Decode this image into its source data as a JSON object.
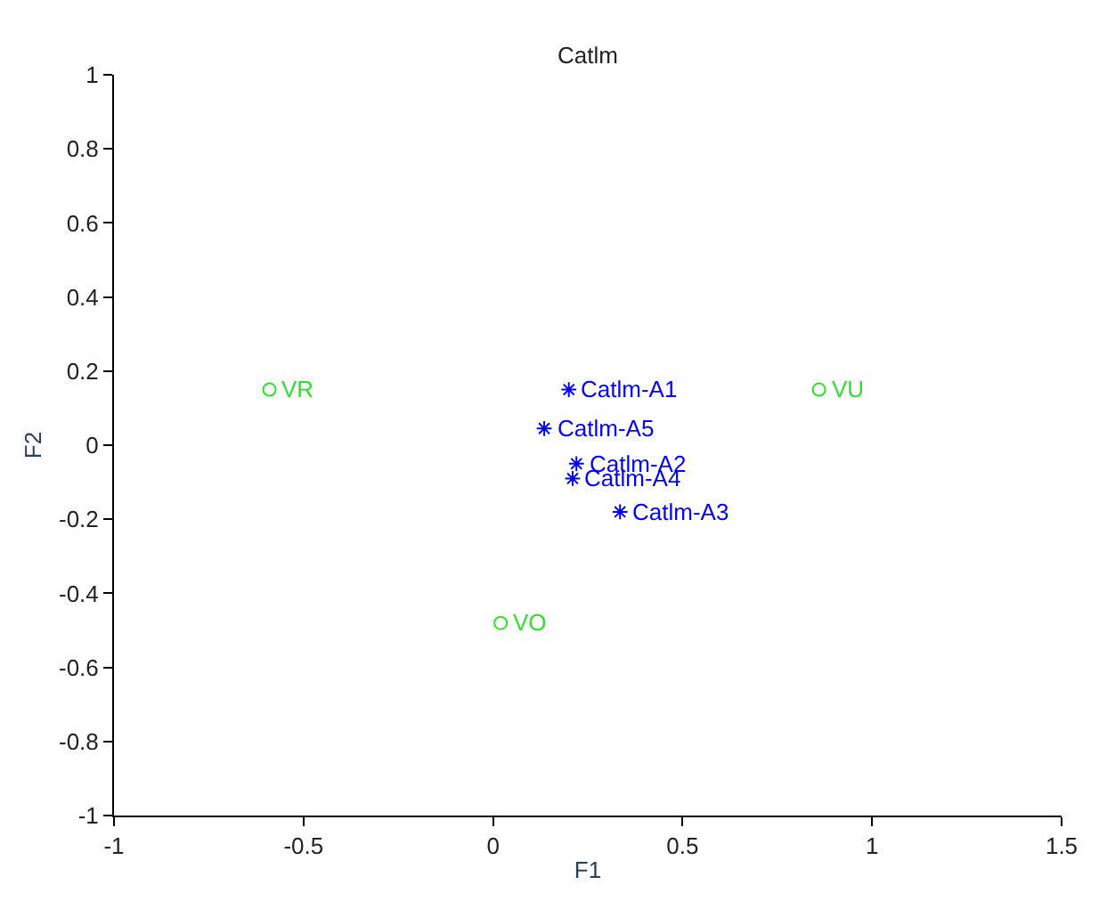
{
  "chart_data": {
    "type": "scatter",
    "title": "Catlm",
    "xlabel": "F1",
    "ylabel": "F2",
    "xlim": [
      -1,
      1.5
    ],
    "xticks": [
      -1,
      -0.5,
      0,
      0.5,
      1,
      1.5
    ],
    "ylim": [
      -1,
      1
    ],
    "yticks": [
      -1,
      -0.8,
      -0.6,
      -0.4,
      -0.2,
      0,
      0.2,
      0.4,
      0.6,
      0.8,
      1
    ],
    "series": [
      {
        "color": "#0000ff",
        "marker": "cross",
        "x": [
          0.2,
          0.22,
          0.335,
          0.21,
          0.135
        ],
        "values": [
          0.15,
          -0.05,
          -0.18,
          -0.09,
          0.045
        ]
      },
      {
        "color": "#33dd33",
        "marker": "circle",
        "x": [
          -0.59,
          0.02,
          0.86
        ],
        "values": [
          0.15,
          -0.48,
          0.15
        ]
      }
    ],
    "annotations": [
      {
        "text": "Catlm-A1",
        "x": 0.2,
        "y": 0.15
      },
      {
        "text": "Catlm-A2",
        "x": 0.22,
        "y": -0.05
      },
      {
        "text": "Catlm-A3",
        "x": 0.335,
        "y": -0.18
      },
      {
        "text": "Catlm-A4",
        "x": 0.21,
        "y": -0.09
      },
      {
        "text": "Catlm-A5",
        "x": 0.135,
        "y": 0.045
      },
      {
        "text": "VR",
        "x": -0.59,
        "y": 0.15
      },
      {
        "text": "VO",
        "x": 0.02,
        "y": -0.48
      },
      {
        "text": "VU",
        "x": 0.86,
        "y": 0.15
      }
    ]
  }
}
